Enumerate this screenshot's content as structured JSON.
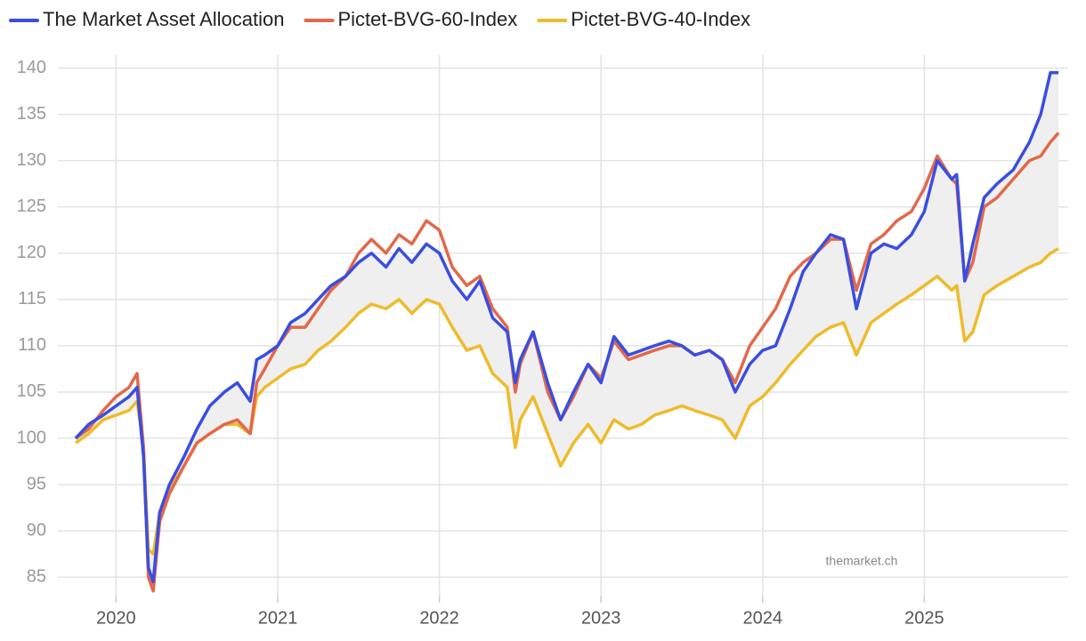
{
  "chart_data": {
    "type": "line",
    "legend": "top-left",
    "grid": true,
    "watermark": "themarket.ch",
    "band_color": "#efefef",
    "x": [
      2019.75,
      2019.83,
      2019.92,
      2020.0,
      2020.08,
      2020.13,
      2020.17,
      2020.2,
      2020.23,
      2020.27,
      2020.33,
      2020.42,
      2020.5,
      2020.58,
      2020.67,
      2020.75,
      2020.83,
      2020.87,
      2020.92,
      2021.0,
      2021.08,
      2021.17,
      2021.25,
      2021.33,
      2021.42,
      2021.5,
      2021.58,
      2021.67,
      2021.75,
      2021.83,
      2021.92,
      2022.0,
      2022.08,
      2022.17,
      2022.25,
      2022.33,
      2022.42,
      2022.47,
      2022.5,
      2022.58,
      2022.67,
      2022.75,
      2022.83,
      2022.92,
      2023.0,
      2023.08,
      2023.17,
      2023.25,
      2023.33,
      2023.42,
      2023.5,
      2023.58,
      2023.67,
      2023.75,
      2023.83,
      2023.92,
      2024.0,
      2024.08,
      2024.17,
      2024.25,
      2024.33,
      2024.42,
      2024.5,
      2024.58,
      2024.67,
      2024.75,
      2024.83,
      2024.92,
      2025.0,
      2025.08,
      2025.17,
      2025.2,
      2025.25,
      2025.3,
      2025.37,
      2025.45,
      2025.55,
      2025.65,
      2025.72,
      2025.78,
      2025.83
    ],
    "series": [
      {
        "name": "The Market Asset Allocation",
        "color": "#3a4ee0",
        "values": [
          100,
          101.5,
          102.5,
          103.5,
          104.5,
          105.5,
          98,
          86,
          84.5,
          92,
          95,
          98,
          101,
          103.5,
          105,
          106,
          104,
          108.5,
          109,
          110,
          112.5,
          113.5,
          115,
          116.5,
          117.5,
          119,
          120,
          118.5,
          120.5,
          119,
          121,
          120,
          117,
          115,
          117,
          113,
          111.5,
          106,
          108.5,
          111.5,
          106,
          102,
          105,
          108,
          106,
          111,
          109,
          109.5,
          110,
          110.5,
          110,
          109,
          109.5,
          108.5,
          105,
          108,
          109.5,
          110,
          114,
          118,
          120,
          122,
          121.5,
          114,
          120,
          121,
          120.5,
          122,
          124.5,
          130,
          128,
          128.5,
          117,
          121,
          126,
          127.5,
          129,
          132,
          135,
          139.5,
          139.5
        ]
      },
      {
        "name": "Pictet-BVG-60-Index",
        "color": "#e2694a",
        "values": [
          100,
          101,
          103,
          104.5,
          105.5,
          107,
          99,
          85,
          83.5,
          91,
          94,
          97,
          99.5,
          100.5,
          101.5,
          102,
          100.5,
          106,
          107.5,
          110,
          112,
          112,
          114,
          116,
          117.5,
          120,
          121.5,
          120,
          122,
          121,
          123.5,
          122.5,
          118.5,
          116.5,
          117.5,
          114,
          112,
          105,
          108,
          111.5,
          105,
          102,
          104.5,
          108,
          106.5,
          110.5,
          108.5,
          109,
          109.5,
          110,
          110,
          109,
          109.5,
          108.5,
          106,
          110,
          112,
          114,
          117.5,
          119,
          120,
          121.5,
          121.5,
          116,
          121,
          122,
          123.5,
          124.5,
          127,
          130.5,
          128,
          127.5,
          117,
          119,
          125,
          126,
          128,
          130,
          130.5,
          132,
          133
        ]
      },
      {
        "name": "Pictet-BVG-40-Index",
        "color": "#eebb2b",
        "values": [
          99.5,
          100.5,
          102,
          102.5,
          103,
          104,
          99,
          88,
          87.5,
          92,
          94.5,
          97,
          99.5,
          100.5,
          101.5,
          101.5,
          100.5,
          104.5,
          105.5,
          106.5,
          107.5,
          108,
          109.5,
          110.5,
          112,
          113.5,
          114.5,
          114,
          115,
          113.5,
          115,
          114.5,
          112,
          109.5,
          110,
          107,
          105.5,
          99,
          102,
          104.5,
          100.5,
          97,
          99.5,
          101.5,
          99.5,
          102,
          101,
          101.5,
          102.5,
          103,
          103.5,
          103,
          102.5,
          102,
          100,
          103.5,
          104.5,
          106,
          108,
          109.5,
          111,
          112,
          112.5,
          109,
          112.5,
          113.5,
          114.5,
          115.5,
          116.5,
          117.5,
          116,
          116.5,
          110.5,
          111.5,
          115.5,
          116.5,
          117.5,
          118.5,
          119,
          120,
          120.5
        ]
      }
    ],
    "xlim": [
      2019.64,
      2025.89
    ],
    "xticks": [
      2020,
      2021,
      2022,
      2023,
      2024,
      2025
    ],
    "ylim": [
      83,
      141.4
    ],
    "yticks": [
      85,
      90,
      95,
      100,
      105,
      110,
      115,
      120,
      125,
      130,
      135,
      140
    ]
  }
}
